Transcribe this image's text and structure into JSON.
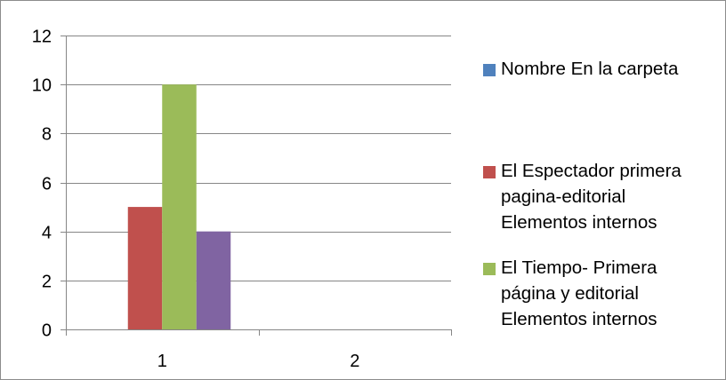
{
  "chart_data": {
    "type": "bar",
    "categories": [
      "1",
      "2"
    ],
    "series": [
      {
        "name": "Nombre En la carpeta",
        "color": "#4f81bd",
        "values": [
          0,
          0
        ]
      },
      {
        "name": "El Espectador primera pagina-editorial Elementos internos",
        "color": "#c0504d",
        "values": [
          5,
          0
        ]
      },
      {
        "name": "El Tiempo- Primera página y editorial Elementos internos",
        "color": "#9bbb59",
        "values": [
          10,
          0
        ]
      },
      {
        "name": "",
        "color": "#8064a2",
        "values": [
          4,
          0
        ]
      }
    ],
    "ylim": [
      0,
      12
    ],
    "yticks": [
      0,
      2,
      4,
      6,
      8,
      10,
      12
    ],
    "grid": true,
    "legend_position": "right"
  },
  "legend": {
    "items": [
      {
        "lines": "Nombre En la carpeta",
        "color": "#4f81bd"
      },
      {
        "lines": "El Espectador primera\npagina-editorial\nElementos internos",
        "color": "#c0504d"
      },
      {
        "lines": "El Tiempo- Primera\npágina y editorial\nElementos internos",
        "color": "#9bbb59"
      }
    ]
  }
}
